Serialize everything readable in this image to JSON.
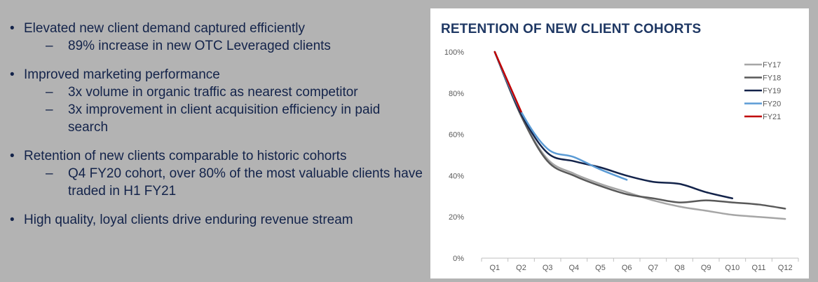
{
  "bullets": [
    {
      "text": "Elevated new client demand captured efficiently",
      "subs": [
        "89% increase in new OTC Leveraged clients"
      ]
    },
    {
      "text": "Improved marketing performance",
      "subs": [
        "3x volume in organic traffic as nearest competitor",
        "3x improvement in client acquisition efficiency in paid search"
      ]
    },
    {
      "text": "Retention of new clients comparable to historic cohorts",
      "subs": [
        "Q4 FY20 cohort, over 80% of the most valuable clients have traded in H1 FY21"
      ]
    },
    {
      "text": "High quality, loyal clients drive enduring revenue stream",
      "subs": []
    }
  ],
  "colors": {
    "text": "#13234a",
    "background": "#b3b3b3",
    "title": "#1f3864",
    "FY17": "#a6a6a6",
    "FY18": "#595959",
    "FY19": "#13234a",
    "FY20": "#5b9bd5",
    "FY21": "#c00000"
  },
  "chart_data": {
    "type": "line",
    "title": "RETENTION OF NEW CLIENT COHORTS",
    "xlabel": "",
    "ylabel": "",
    "categories": [
      "Q1",
      "Q2",
      "Q3",
      "Q4",
      "Q5",
      "Q6",
      "Q7",
      "Q8",
      "Q9",
      "Q10",
      "Q11",
      "Q12"
    ],
    "ylim": [
      0,
      100
    ],
    "yticks": [
      "0%",
      "20%",
      "40%",
      "60%",
      "80%",
      "100%"
    ],
    "grid": false,
    "legend_position": "top-right",
    "series": [
      {
        "name": "FY17",
        "values": [
          100,
          69,
          48,
          41,
          36,
          32,
          28,
          25,
          23,
          21,
          20,
          19
        ]
      },
      {
        "name": "FY18",
        "values": [
          100,
          69,
          47,
          40,
          35,
          31,
          29,
          27,
          28,
          27,
          26,
          24
        ]
      },
      {
        "name": "FY19",
        "values": [
          100,
          70,
          51,
          47,
          44,
          40,
          37,
          36,
          32,
          29,
          null,
          null
        ]
      },
      {
        "name": "FY20",
        "values": [
          100,
          71,
          53,
          49,
          43,
          38,
          null,
          null,
          null,
          null,
          null,
          null
        ]
      },
      {
        "name": "FY21",
        "values": [
          100,
          71,
          null,
          null,
          null,
          null,
          null,
          null,
          null,
          null,
          null,
          null
        ]
      }
    ]
  }
}
